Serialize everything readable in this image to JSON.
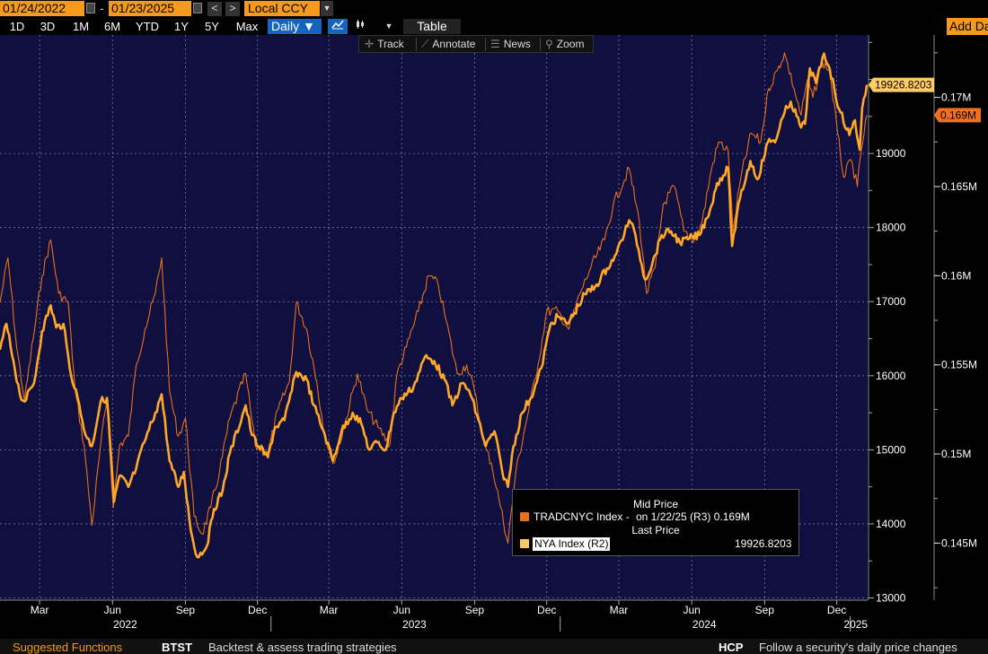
{
  "toolbar": {
    "start_date": "01/24/2022",
    "end_date": "01/23/2025",
    "date_separator": "-",
    "prev_label": "<",
    "next_label": ">",
    "currency": "Local CCY",
    "ranges": [
      "1D",
      "3D",
      "1M",
      "6M",
      "YTD",
      "1Y",
      "5Y",
      "Max"
    ],
    "frequency": "Daily ▼",
    "table_label": "Table",
    "add_data_label": "Add Data"
  },
  "chart_tools": {
    "track": "Track",
    "annotate": "Annotate",
    "news": "News",
    "zoom": "Zoom"
  },
  "legend": {
    "mid_price_header": "Mid Price",
    "tradcnyc_name": "TRADCNYC Index -",
    "tradcnyc_detail": "on 1/22/25  (R3) 0.169M",
    "last_price_header": "Last Price",
    "nya_name": "NYA Index  (R2)",
    "nya_value": "19926.8203"
  },
  "bottom": {
    "suggested": "Suggested Functions",
    "btst": "BTST",
    "btst_desc": "Backtest & assess trading strategies",
    "hcp": "HCP",
    "hcp_desc": "Follow a security's daily price changes"
  },
  "colors": {
    "plot_bg": "#101040",
    "nya_line": "#ffa726",
    "tradcnyc_line": "#e8701a",
    "label_last": "#ffcc66",
    "label_mid": "#f07020"
  },
  "chart_data": {
    "type": "line",
    "x_start": "2022-01-24",
    "x_end": "2025-01-23",
    "x_tick_labels": [
      "Mar",
      "Jun",
      "Sep",
      "Dec",
      "Mar",
      "Jun",
      "Sep",
      "Dec",
      "Mar",
      "Jun",
      "Sep",
      "Dec"
    ],
    "x_year_labels": [
      "2022",
      "2023",
      "2024",
      "2025"
    ],
    "y_left_axis": {
      "ylim": [
        12970,
        20600
      ],
      "ticks": [
        13000,
        14000,
        15000,
        16000,
        17000,
        18000,
        19000
      ]
    },
    "y_right_axis": {
      "ylim": [
        0.1418,
        0.1735
      ],
      "tick_labels": [
        "0.145M",
        "0.15M",
        "0.155M",
        "0.16M",
        "0.165M",
        "0.17M"
      ],
      "ticks": [
        0.145,
        0.15,
        0.155,
        0.16,
        0.165,
        0.17
      ]
    },
    "last_value_labels": {
      "nya": "19926.8203",
      "tradcnyc": "0.169M"
    },
    "grid": true,
    "series": [
      {
        "name": "NYA Index  (R2)",
        "axis": "left",
        "points": [
          [
            "2022-01-24",
            16350
          ],
          [
            "2022-02-01",
            16700
          ],
          [
            "2022-02-10",
            16200
          ],
          [
            "2022-02-18",
            15750
          ],
          [
            "2022-02-24",
            15650
          ],
          [
            "2022-03-08",
            15900
          ],
          [
            "2022-03-18",
            16600
          ],
          [
            "2022-03-29",
            16950
          ],
          [
            "2022-04-05",
            16650
          ],
          [
            "2022-04-14",
            16700
          ],
          [
            "2022-04-22",
            16100
          ],
          [
            "2022-05-02",
            15700
          ],
          [
            "2022-05-12",
            15200
          ],
          [
            "2022-05-20",
            15050
          ],
          [
            "2022-05-31",
            15650
          ],
          [
            "2022-06-08",
            15700
          ],
          [
            "2022-06-17",
            14300
          ],
          [
            "2022-06-24",
            14650
          ],
          [
            "2022-07-05",
            14500
          ],
          [
            "2022-07-15",
            14750
          ],
          [
            "2022-07-25",
            15100
          ],
          [
            "2022-08-08",
            15500
          ],
          [
            "2022-08-16",
            15750
          ],
          [
            "2022-08-26",
            14850
          ],
          [
            "2022-09-06",
            14500
          ],
          [
            "2022-09-13",
            14700
          ],
          [
            "2022-09-22",
            13900
          ],
          [
            "2022-09-30",
            13550
          ],
          [
            "2022-10-12",
            13700
          ],
          [
            "2022-10-21",
            14200
          ],
          [
            "2022-11-01",
            14450
          ],
          [
            "2022-11-10",
            14950
          ],
          [
            "2022-11-30",
            15600
          ],
          [
            "2022-12-08",
            15200
          ],
          [
            "2022-12-16",
            15050
          ],
          [
            "2022-12-28",
            14900
          ],
          [
            "2023-01-06",
            15300
          ],
          [
            "2023-01-18",
            15400
          ],
          [
            "2023-02-02",
            16050
          ],
          [
            "2023-02-15",
            15950
          ],
          [
            "2023-02-24",
            15600
          ],
          [
            "2023-03-10",
            15200
          ],
          [
            "2023-03-20",
            14850
          ],
          [
            "2023-03-31",
            15250
          ],
          [
            "2023-04-14",
            15500
          ],
          [
            "2023-04-25",
            15350
          ],
          [
            "2023-05-05",
            15000
          ],
          [
            "2023-05-15",
            15100
          ],
          [
            "2023-05-26",
            15000
          ],
          [
            "2023-06-05",
            15500
          ],
          [
            "2023-06-15",
            15700
          ],
          [
            "2023-06-30",
            15850
          ],
          [
            "2023-07-14",
            16250
          ],
          [
            "2023-07-26",
            16200
          ],
          [
            "2023-08-08",
            15950
          ],
          [
            "2023-08-18",
            15600
          ],
          [
            "2023-08-30",
            15900
          ],
          [
            "2023-09-08",
            15800
          ],
          [
            "2023-09-20",
            15400
          ],
          [
            "2023-09-29",
            15050
          ],
          [
            "2023-10-10",
            15250
          ],
          [
            "2023-10-20",
            14700
          ],
          [
            "2023-10-27",
            14500
          ],
          [
            "2023-11-03",
            15050
          ],
          [
            "2023-11-14",
            15500
          ],
          [
            "2023-11-29",
            15800
          ],
          [
            "2023-12-08",
            16100
          ],
          [
            "2023-12-20",
            16700
          ],
          [
            "2023-12-29",
            16800
          ],
          [
            "2024-01-10",
            16700
          ],
          [
            "2024-01-19",
            16850
          ],
          [
            "2024-02-01",
            17100
          ],
          [
            "2024-02-14",
            17200
          ],
          [
            "2024-02-29",
            17450
          ],
          [
            "2024-03-12",
            17650
          ],
          [
            "2024-03-28",
            18100
          ],
          [
            "2024-04-05",
            17900
          ],
          [
            "2024-04-17",
            17300
          ],
          [
            "2024-04-26",
            17500
          ],
          [
            "2024-05-08",
            17900
          ],
          [
            "2024-05-20",
            17950
          ],
          [
            "2024-05-31",
            17800
          ],
          [
            "2024-06-12",
            17850
          ],
          [
            "2024-06-25",
            17900
          ],
          [
            "2024-07-10",
            18300
          ],
          [
            "2024-07-17",
            18600
          ],
          [
            "2024-07-31",
            18800
          ],
          [
            "2024-08-05",
            17750
          ],
          [
            "2024-08-15",
            18400
          ],
          [
            "2024-08-28",
            18900
          ],
          [
            "2024-09-06",
            18650
          ],
          [
            "2024-09-19",
            19150
          ],
          [
            "2024-09-30",
            19200
          ],
          [
            "2024-10-10",
            19550
          ],
          [
            "2024-10-18",
            19700
          ],
          [
            "2024-10-31",
            19350
          ],
          [
            "2024-11-05",
            19400
          ],
          [
            "2024-11-11",
            20150
          ],
          [
            "2024-11-19",
            19950
          ],
          [
            "2024-11-29",
            20350
          ],
          [
            "2024-12-06",
            20150
          ],
          [
            "2024-12-18",
            19600
          ],
          [
            "2024-12-31",
            19250
          ],
          [
            "2025-01-07",
            19450
          ],
          [
            "2025-01-13",
            19050
          ],
          [
            "2025-01-16",
            19600
          ],
          [
            "2025-01-22",
            19927
          ]
        ]
      },
      {
        "name": "TRADCNYC Index -",
        "axis": "right",
        "points": [
          [
            "2022-01-24",
            0.1585
          ],
          [
            "2022-02-03",
            0.161
          ],
          [
            "2022-02-14",
            0.156
          ],
          [
            "2022-02-24",
            0.153
          ],
          [
            "2022-03-07",
            0.1565
          ],
          [
            "2022-03-18",
            0.16
          ],
          [
            "2022-03-29",
            0.162
          ],
          [
            "2022-04-08",
            0.159
          ],
          [
            "2022-04-20",
            0.1585
          ],
          [
            "2022-04-29",
            0.1535
          ],
          [
            "2022-05-10",
            0.1505
          ],
          [
            "2022-05-20",
            0.146
          ],
          [
            "2022-05-31",
            0.1505
          ],
          [
            "2022-06-08",
            0.153
          ],
          [
            "2022-06-16",
            0.147
          ],
          [
            "2022-06-24",
            0.1505
          ],
          [
            "2022-07-05",
            0.151
          ],
          [
            "2022-07-15",
            0.155
          ],
          [
            "2022-07-26",
            0.157
          ],
          [
            "2022-08-08",
            0.159
          ],
          [
            "2022-08-16",
            0.161
          ],
          [
            "2022-08-26",
            0.1535
          ],
          [
            "2022-09-06",
            0.151
          ],
          [
            "2022-09-15",
            0.152
          ],
          [
            "2022-09-26",
            0.1465
          ],
          [
            "2022-10-06",
            0.1455
          ],
          [
            "2022-10-17",
            0.147
          ],
          [
            "2022-10-28",
            0.149
          ],
          [
            "2022-11-10",
            0.152
          ],
          [
            "2022-11-30",
            0.1545
          ],
          [
            "2022-12-12",
            0.1505
          ],
          [
            "2022-12-28",
            0.15
          ],
          [
            "2023-01-10",
            0.1525
          ],
          [
            "2023-01-24",
            0.154
          ],
          [
            "2023-02-02",
            0.1585
          ],
          [
            "2023-02-15",
            0.157
          ],
          [
            "2023-02-28",
            0.154
          ],
          [
            "2023-03-10",
            0.151
          ],
          [
            "2023-03-22",
            0.1495
          ],
          [
            "2023-04-06",
            0.152
          ],
          [
            "2023-04-20",
            0.1545
          ],
          [
            "2023-05-02",
            0.1525
          ],
          [
            "2023-05-16",
            0.1515
          ],
          [
            "2023-05-31",
            0.1505
          ],
          [
            "2023-06-09",
            0.1545
          ],
          [
            "2023-06-21",
            0.156
          ],
          [
            "2023-07-06",
            0.158
          ],
          [
            "2023-07-19",
            0.16
          ],
          [
            "2023-07-31",
            0.1595
          ],
          [
            "2023-08-10",
            0.1575
          ],
          [
            "2023-08-24",
            0.1545
          ],
          [
            "2023-09-05",
            0.155
          ],
          [
            "2023-09-15",
            0.1535
          ],
          [
            "2023-09-27",
            0.1505
          ],
          [
            "2023-10-06",
            0.1495
          ],
          [
            "2023-10-18",
            0.147
          ],
          [
            "2023-10-27",
            0.145
          ],
          [
            "2023-11-06",
            0.149
          ],
          [
            "2023-11-20",
            0.152
          ],
          [
            "2023-12-04",
            0.155
          ],
          [
            "2023-12-15",
            0.158
          ],
          [
            "2023-12-29",
            0.158
          ],
          [
            "2024-01-12",
            0.157
          ],
          [
            "2024-01-26",
            0.159
          ],
          [
            "2024-02-09",
            0.1605
          ],
          [
            "2024-02-26",
            0.162
          ],
          [
            "2024-03-08",
            0.164
          ],
          [
            "2024-03-28",
            0.166
          ],
          [
            "2024-04-10",
            0.163
          ],
          [
            "2024-04-19",
            0.159
          ],
          [
            "2024-04-30",
            0.1605
          ],
          [
            "2024-05-10",
            0.164
          ],
          [
            "2024-05-24",
            0.165
          ],
          [
            "2024-06-05",
            0.1625
          ],
          [
            "2024-06-18",
            0.162
          ],
          [
            "2024-06-28",
            0.163
          ],
          [
            "2024-07-10",
            0.166
          ],
          [
            "2024-07-19",
            0.1675
          ],
          [
            "2024-07-31",
            0.167
          ],
          [
            "2024-08-06",
            0.1625
          ],
          [
            "2024-08-16",
            0.1655
          ],
          [
            "2024-08-29",
            0.168
          ],
          [
            "2024-09-10",
            0.1675
          ],
          [
            "2024-09-20",
            0.1705
          ],
          [
            "2024-10-01",
            0.1715
          ],
          [
            "2024-10-10",
            0.1725
          ],
          [
            "2024-10-22",
            0.1705
          ],
          [
            "2024-10-31",
            0.169
          ],
          [
            "2024-11-08",
            0.171
          ],
          [
            "2024-11-15",
            0.17
          ],
          [
            "2024-11-27",
            0.172
          ],
          [
            "2024-12-06",
            0.1715
          ],
          [
            "2024-12-16",
            0.168
          ],
          [
            "2024-12-24",
            0.1655
          ],
          [
            "2025-01-02",
            0.1665
          ],
          [
            "2025-01-10",
            0.165
          ],
          [
            "2025-01-15",
            0.167
          ],
          [
            "2025-01-22",
            0.169
          ]
        ]
      }
    ]
  }
}
